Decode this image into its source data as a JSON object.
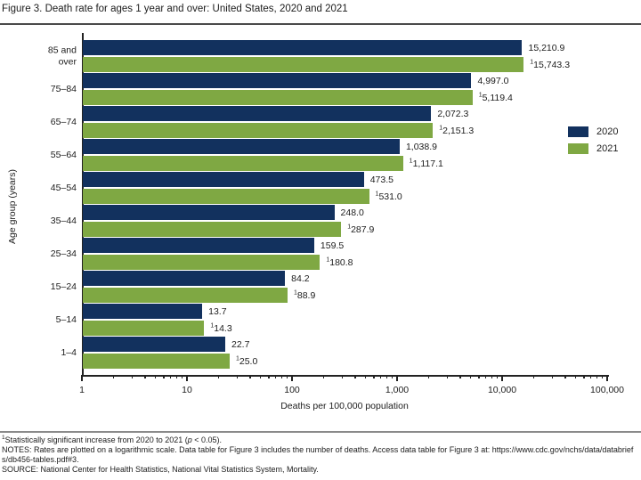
{
  "title": "Figure 3. Death rate for ages 1 year and over: United States, 2020 and 2021",
  "legend": [
    {
      "label": "2020",
      "color": "#12315e"
    },
    {
      "label": "2021",
      "color": "#7fa843"
    }
  ],
  "chart_data": {
    "type": "bar",
    "orientation": "horizontal",
    "scale": "logarithmic",
    "title": "Figure 3. Death rate for ages 1 year and over: United States, 2020 and 2021",
    "xlabel": "Deaths per 100,000 population",
    "ylabel": "Age group (years)",
    "xlim": [
      1,
      100000
    ],
    "x_ticks": [
      "1",
      "10",
      "100",
      "1,000",
      "10,000",
      "100,000"
    ],
    "grid": false,
    "legend_position": "right",
    "categories": [
      "85 and\nover",
      "75–84",
      "65–74",
      "55–64",
      "45–54",
      "35–44",
      "25–34",
      "15–24",
      "5–14",
      "1–4"
    ],
    "series": [
      {
        "name": "2020",
        "color": "#12315e",
        "values": [
          15210.9,
          4997.0,
          2072.3,
          1038.9,
          473.5,
          248.0,
          159.5,
          84.2,
          13.7,
          22.7
        ],
        "labels": [
          "15,210.9",
          "4,997.0",
          "2,072.3",
          "1,038.9",
          "473.5",
          "248.0",
          "159.5",
          "84.2",
          "13.7",
          "22.7"
        ],
        "significant": false
      },
      {
        "name": "2021",
        "color": "#7fa843",
        "values": [
          15743.3,
          5119.4,
          2151.3,
          1117.1,
          531.0,
          287.9,
          180.8,
          88.9,
          14.3,
          25.0
        ],
        "labels": [
          "15,743.3",
          "5,119.4",
          "2,151.3",
          "1,117.1",
          "531.0",
          "287.9",
          "180.8",
          "88.9",
          "14.3",
          "25.0"
        ],
        "significant": true
      }
    ],
    "footnote_marker": "1"
  },
  "footer": {
    "footnote": {
      "marker": "1",
      "before_p": "Statistically significant increase from 2020 to 2021 (",
      "p_symbol": "p",
      "after_p": " < 0.05)."
    },
    "notes": "NOTES: Rates are plotted on a logarithmic scale. Data table for Figure 3 includes the number of deaths. Access data table for Figure 3 at: https://www.cdc.gov/nchs/data/databriefs/db456-tables.pdf#3.",
    "source": "SOURCE: National Center for Health Statistics, National Vital Statistics System, Mortality."
  }
}
